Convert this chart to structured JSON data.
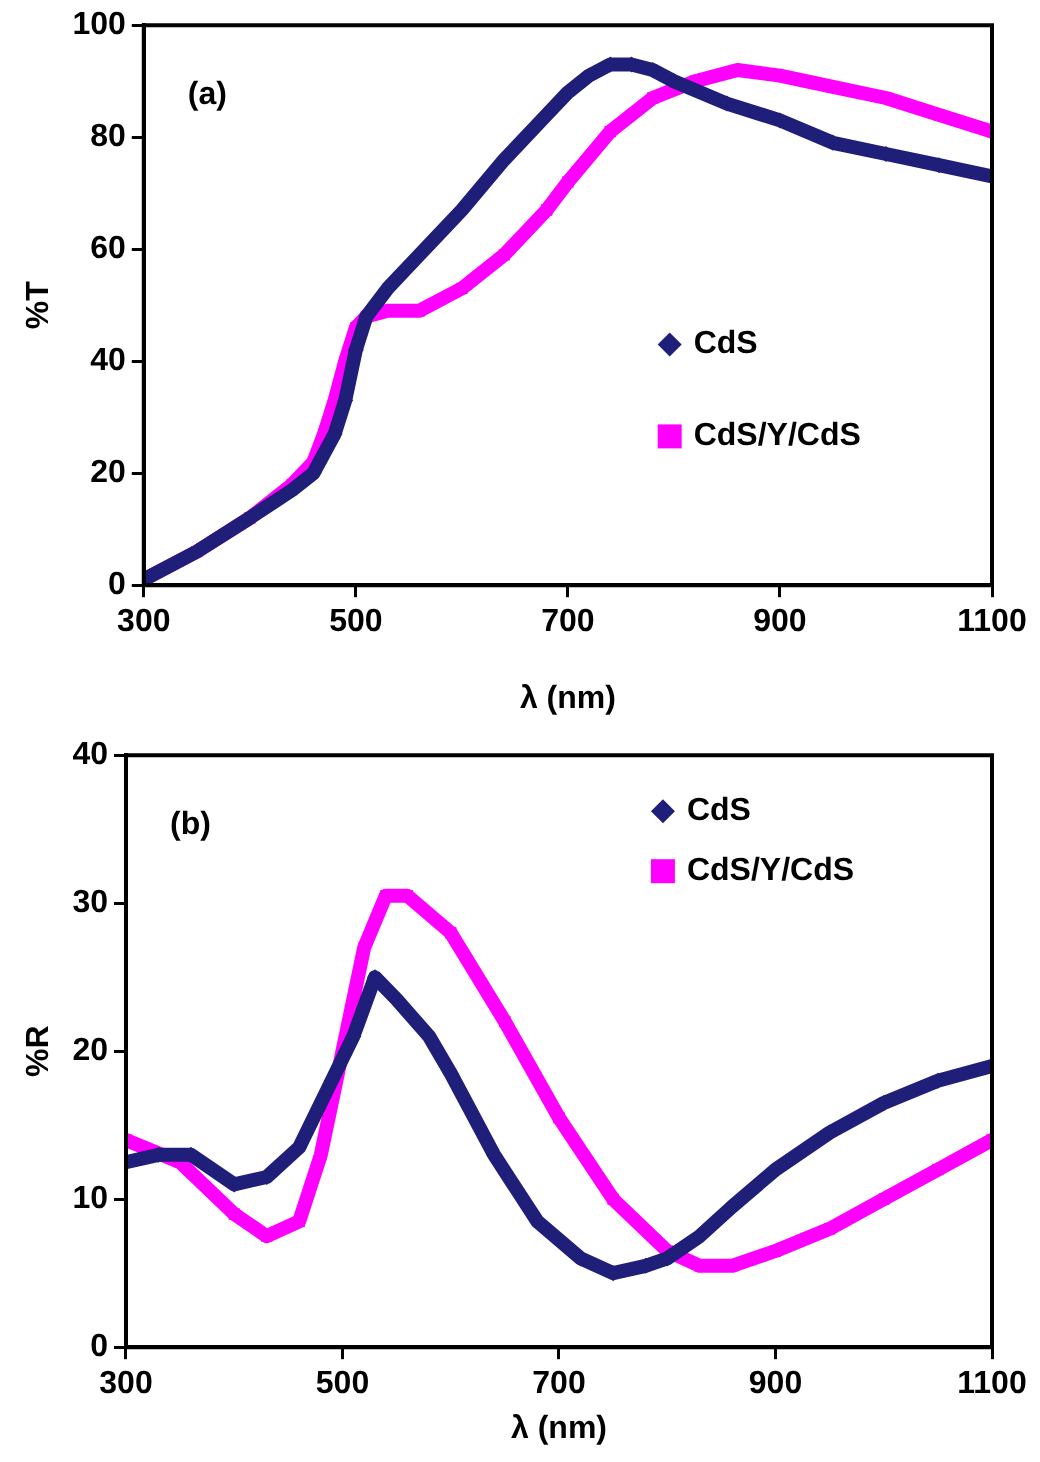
{
  "chart_data": [
    {
      "type": "line",
      "xlabel": "λ (nm)",
      "ylabel": "%T",
      "annotations": [
        "(a)"
      ],
      "legend": "right",
      "grid": false,
      "line_style": "solid",
      "xlim": [
        300,
        1100
      ],
      "xticks": [
        300,
        500,
        700,
        900,
        1100
      ],
      "ylim": [
        0,
        100
      ],
      "yticks": [
        0,
        20,
        40,
        60,
        80,
        100
      ],
      "series": [
        {
          "name": "CdS",
          "color": "#1f1f7a",
          "marker": "diamond",
          "x": [
            300,
            350,
            400,
            440,
            460,
            480,
            490,
            500,
            510,
            530,
            560,
            600,
            640,
            680,
            700,
            720,
            740,
            760,
            780,
            800,
            850,
            900,
            950,
            1000,
            1050,
            1100
          ],
          "values": [
            1,
            6,
            12,
            17,
            20,
            27,
            33,
            42,
            48,
            53,
            59,
            67,
            76,
            84,
            88,
            91,
            93,
            93,
            92,
            90,
            86,
            83,
            79,
            77,
            75,
            73
          ]
        },
        {
          "name": "CdS/Y/CdS",
          "color": "#ff00ff",
          "marker": "square",
          "x": [
            300,
            350,
            400,
            440,
            460,
            470,
            480,
            490,
            500,
            510,
            530,
            560,
            600,
            640,
            680,
            700,
            740,
            780,
            820,
            860,
            900,
            950,
            1000,
            1050,
            1100
          ],
          "values": [
            1,
            6,
            12,
            18,
            22,
            27,
            33,
            40,
            46,
            48,
            49,
            49,
            53,
            59,
            67,
            72,
            81,
            87,
            90,
            92,
            91,
            89,
            87,
            84,
            81
          ]
        }
      ]
    },
    {
      "type": "line",
      "xlabel": "λ (nm)",
      "ylabel": "%R",
      "annotations": [
        "(b)"
      ],
      "legend": "top right",
      "grid": false,
      "line_style": "solid",
      "xlim": [
        300,
        1100
      ],
      "xticks": [
        300,
        500,
        700,
        900,
        1100
      ],
      "ylim": [
        0,
        40
      ],
      "yticks": [
        0,
        10,
        20,
        30,
        40
      ],
      "series": [
        {
          "name": "CdS",
          "color": "#1f1f7a",
          "marker": "diamond",
          "x": [
            300,
            330,
            360,
            400,
            430,
            460,
            490,
            510,
            530,
            550,
            580,
            600,
            640,
            680,
            720,
            750,
            780,
            800,
            830,
            860,
            900,
            950,
            1000,
            1050,
            1100
          ],
          "values": [
            12.5,
            13,
            13,
            11,
            11.5,
            13.5,
            18,
            21,
            25,
            23.5,
            21,
            18.5,
            13,
            8.5,
            6,
            5,
            5.5,
            6,
            7.5,
            9.5,
            12,
            14.5,
            16.5,
            18,
            19
          ]
        },
        {
          "name": "CdS/Y/CdS",
          "color": "#ff00ff",
          "marker": "square",
          "x": [
            300,
            350,
            400,
            430,
            460,
            480,
            500,
            520,
            540,
            560,
            600,
            650,
            700,
            750,
            800,
            830,
            860,
            900,
            950,
            1000,
            1050,
            1100
          ],
          "values": [
            14,
            12.5,
            9,
            7.5,
            8.5,
            13,
            20,
            27,
            30.5,
            30.5,
            28,
            22,
            15.5,
            10,
            6.5,
            5.5,
            5.5,
            6.5,
            8,
            10,
            12,
            14
          ]
        }
      ]
    }
  ]
}
